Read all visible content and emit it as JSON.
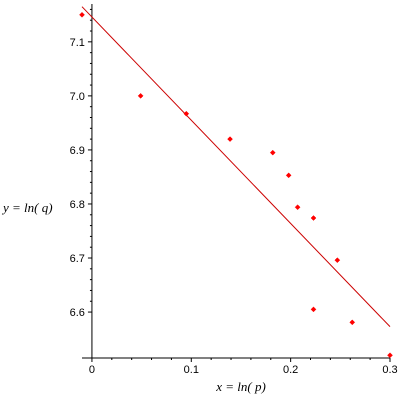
{
  "chart_data": {
    "type": "scatter",
    "title": "",
    "xlabel": "x = ln( p)",
    "ylabel": "y = ln( q)",
    "xlim": [
      -0.01,
      0.3
    ],
    "ylim": [
      6.515,
      7.17
    ],
    "x_ticks": [
      "0",
      "0.1",
      "0.2",
      "0.3"
    ],
    "y_ticks": [
      "6.6",
      "6.7",
      "6.8",
      "6.9",
      "7.0",
      "7.1"
    ],
    "grid": false,
    "legend": "none",
    "series": [
      {
        "kind": "points",
        "color": "#ff0000",
        "marker": "diamond",
        "points": [
          {
            "x": -0.01,
            "y": 7.15
          },
          {
            "x": 0.049,
            "y": 7.0
          },
          {
            "x": 0.095,
            "y": 6.967
          },
          {
            "x": 0.139,
            "y": 6.92
          },
          {
            "x": 0.182,
            "y": 6.895
          },
          {
            "x": 0.198,
            "y": 6.853
          },
          {
            "x": 0.207,
            "y": 6.794
          },
          {
            "x": 0.223,
            "y": 6.774
          },
          {
            "x": 0.247,
            "y": 6.696
          },
          {
            "x": 0.223,
            "y": 6.605
          },
          {
            "x": 0.262,
            "y": 6.581
          },
          {
            "x": 0.3,
            "y": 6.52
          }
        ]
      },
      {
        "kind": "fit-line",
        "color": "#cc0000",
        "points": [
          {
            "x": -0.01,
            "y": 7.165
          },
          {
            "x": 0.3,
            "y": 6.573
          }
        ]
      }
    ]
  }
}
